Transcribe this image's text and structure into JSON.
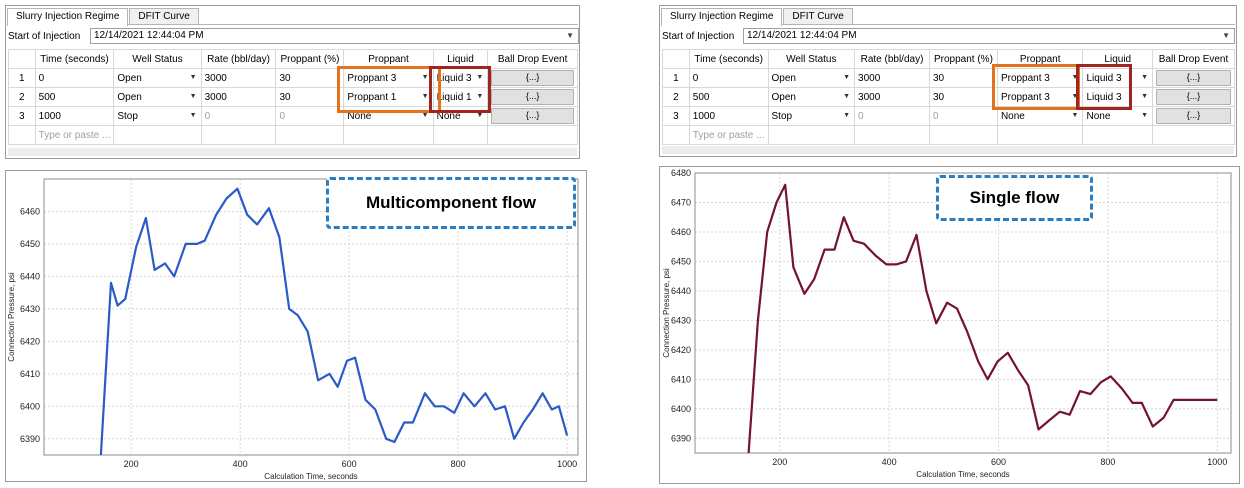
{
  "colors": {
    "left_line": "#2a5bc8",
    "right_line": "#741232",
    "proppant_box": "#e2731c",
    "liquid_box": "#a0241f",
    "callout_border": "#2b7fc1"
  },
  "left_panel": {
    "tabs": [
      "Slurry Injection Regime",
      "DFIT Curve"
    ],
    "start_label": "Start of Injection",
    "start_value": "12/14/2021 12:44:04 PM",
    "headers": [
      "Time (seconds)",
      "Well Status",
      "Rate (bbl/day)",
      "Proppant (%)",
      "Proppant",
      "Liquid",
      "Ball Drop Event"
    ],
    "rows": [
      {
        "num": "1",
        "time": "0",
        "status": "Open",
        "rate": "3000",
        "proppant_pct": "30",
        "proppant": "Proppant 3",
        "liquid": "Liquid 3",
        "ball": "{...}"
      },
      {
        "num": "2",
        "time": "500",
        "status": "Open",
        "rate": "3000",
        "proppant_pct": "30",
        "proppant": "Proppant 1",
        "liquid": "Liquid 1",
        "ball": "{...}"
      },
      {
        "num": "3",
        "time": "1000",
        "status": "Stop",
        "rate": "0",
        "proppant_pct": "0",
        "proppant": "None",
        "liquid": "None",
        "ball": "{...}"
      }
    ],
    "new_row_placeholder": "Type or paste ..."
  },
  "right_panel": {
    "tabs": [
      "Slurry Injection Regime",
      "DFIT Curve"
    ],
    "start_label": "Start of Injection",
    "start_value": "12/14/2021 12:44:04 PM",
    "headers": [
      "Time (seconds)",
      "Well Status",
      "Rate (bbl/day)",
      "Proppant (%)",
      "Proppant",
      "Liquid",
      "Ball Drop Event"
    ],
    "rows": [
      {
        "num": "1",
        "time": "0",
        "status": "Open",
        "rate": "3000",
        "proppant_pct": "30",
        "proppant": "Proppant 3",
        "liquid": "Liquid 3",
        "ball": "{...}"
      },
      {
        "num": "2",
        "time": "500",
        "status": "Open",
        "rate": "3000",
        "proppant_pct": "30",
        "proppant": "Proppant 3",
        "liquid": "Liquid 3",
        "ball": "{...}"
      },
      {
        "num": "3",
        "time": "1000",
        "status": "Stop",
        "rate": "0",
        "proppant_pct": "0",
        "proppant": "None",
        "liquid": "None",
        "ball": "{...}"
      }
    ],
    "new_row_placeholder": "Type or paste ..."
  },
  "chart_data": [
    {
      "type": "line",
      "title": "Multicomponent flow",
      "xlabel": "Calculation Time, seconds",
      "ylabel": "Connection Pressure, psi",
      "xlim": [
        0,
        1000
      ],
      "ylim": [
        6385,
        6470
      ],
      "xticks": [
        200,
        400,
        600,
        800,
        1000
      ],
      "yticks": [
        6390,
        6400,
        6410,
        6420,
        6430,
        6440,
        6450,
        6460
      ],
      "grid": true,
      "series": [
        {
          "x": [
            143,
            163,
            175,
            189,
            209,
            227,
            243,
            262,
            279,
            300,
            321,
            335,
            356,
            375,
            395,
            413,
            431,
            453,
            472,
            490,
            506,
            524,
            543,
            564,
            579,
            596,
            611,
            630,
            648,
            668,
            683,
            701,
            717,
            739,
            757,
            774,
            793,
            810,
            830,
            850,
            868,
            886,
            903,
            920,
            937,
            955,
            972,
            985,
            1000
          ],
          "y": [
            6381,
            6438,
            6431,
            6433,
            6449,
            6458,
            6442,
            6444,
            6440,
            6450,
            6450,
            6451,
            6459,
            6464,
            6467,
            6459,
            6456,
            6461,
            6452,
            6430,
            6428,
            6423,
            6408,
            6410,
            6406,
            6414,
            6415,
            6402,
            6399,
            6390,
            6389,
            6395,
            6395,
            6404,
            6400,
            6400,
            6398,
            6404,
            6400,
            6404,
            6399,
            6400,
            6390,
            6395,
            6399,
            6404,
            6399,
            6400,
            6391
          ]
        }
      ]
    },
    {
      "type": "line",
      "title": "Single flow",
      "xlabel": "Calculation Time, seconds",
      "ylabel": "Connection Pressure, psi",
      "xlim": [
        0,
        1000
      ],
      "ylim": [
        6385,
        6480
      ],
      "xticks": [
        200,
        400,
        600,
        800,
        1000
      ],
      "yticks": [
        6390,
        6400,
        6410,
        6420,
        6430,
        6440,
        6450,
        6460,
        6470,
        6480
      ],
      "grid": true,
      "series": [
        {
          "x": [
            143,
            160,
            177,
            194,
            210,
            225,
            245,
            263,
            282,
            300,
            317,
            335,
            354,
            375,
            395,
            413,
            431,
            450,
            468,
            486,
            506,
            524,
            543,
            563,
            580,
            598,
            617,
            636,
            654,
            673,
            692,
            712,
            730,
            749,
            768,
            787,
            805,
            825,
            845,
            862,
            882,
            902,
            920,
            940,
            960,
            980,
            1000
          ],
          "y": [
            6385,
            6430,
            6460,
            6470,
            6476,
            6448,
            6439,
            6444,
            6454,
            6454,
            6465,
            6457,
            6456,
            6452,
            6449,
            6449,
            6450,
            6459,
            6440,
            6429,
            6436,
            6434,
            6426,
            6416,
            6410,
            6416,
            6419,
            6413,
            6408,
            6393,
            6396,
            6399,
            6398,
            6406,
            6405,
            6409,
            6411,
            6407,
            6402,
            6402,
            6394,
            6397,
            6403,
            6403,
            6403,
            6403,
            6403
          ]
        }
      ]
    }
  ]
}
